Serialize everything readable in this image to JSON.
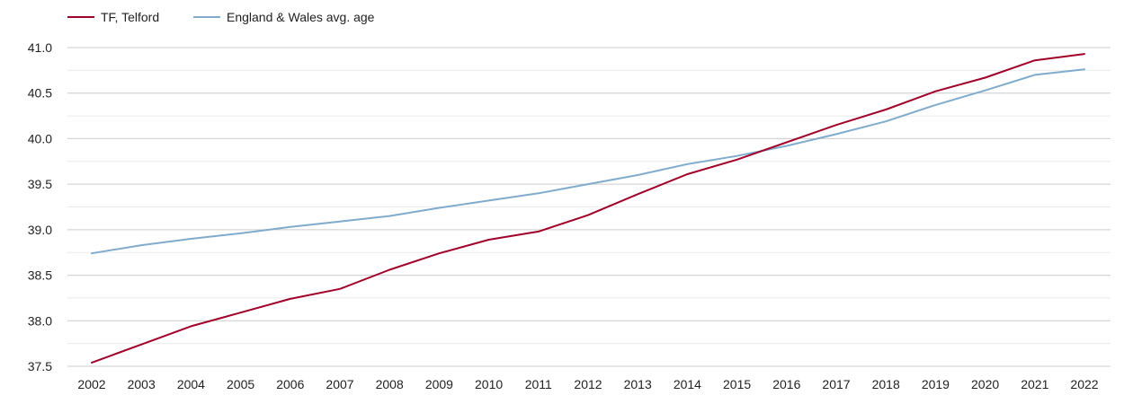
{
  "chart_data": {
    "type": "line",
    "title": "",
    "xlabel": "",
    "ylabel": "",
    "x": [
      "2002",
      "2003",
      "2004",
      "2005",
      "2006",
      "2007",
      "2008",
      "2009",
      "2010",
      "2011",
      "2012",
      "2013",
      "2014",
      "2015",
      "2016",
      "2017",
      "2018",
      "2019",
      "2020",
      "2021",
      "2022"
    ],
    "ylim": [
      37.5,
      41.0
    ],
    "y_ticks": [
      "37.5",
      "38.0",
      "38.5",
      "39.0",
      "39.5",
      "40.0",
      "40.5",
      "41.0"
    ],
    "grid": true,
    "legend_position": "top-left",
    "series": [
      {
        "name": "TF, Telford",
        "color": "#a0002a",
        "values": [
          37.54,
          37.74,
          37.94,
          38.09,
          38.24,
          38.35,
          38.56,
          38.74,
          38.89,
          38.98,
          39.16,
          39.39,
          39.61,
          39.77,
          39.96,
          40.15,
          40.32,
          40.52,
          40.67,
          40.86,
          40.93
        ]
      },
      {
        "name": "England & Wales avg. age",
        "color": "#7fabcc",
        "values": [
          38.74,
          38.83,
          38.9,
          38.96,
          39.03,
          39.09,
          39.15,
          39.24,
          39.32,
          39.4,
          39.5,
          39.6,
          39.72,
          39.81,
          39.92,
          40.05,
          40.19,
          40.37,
          40.53,
          40.7,
          40.76
        ]
      }
    ]
  }
}
